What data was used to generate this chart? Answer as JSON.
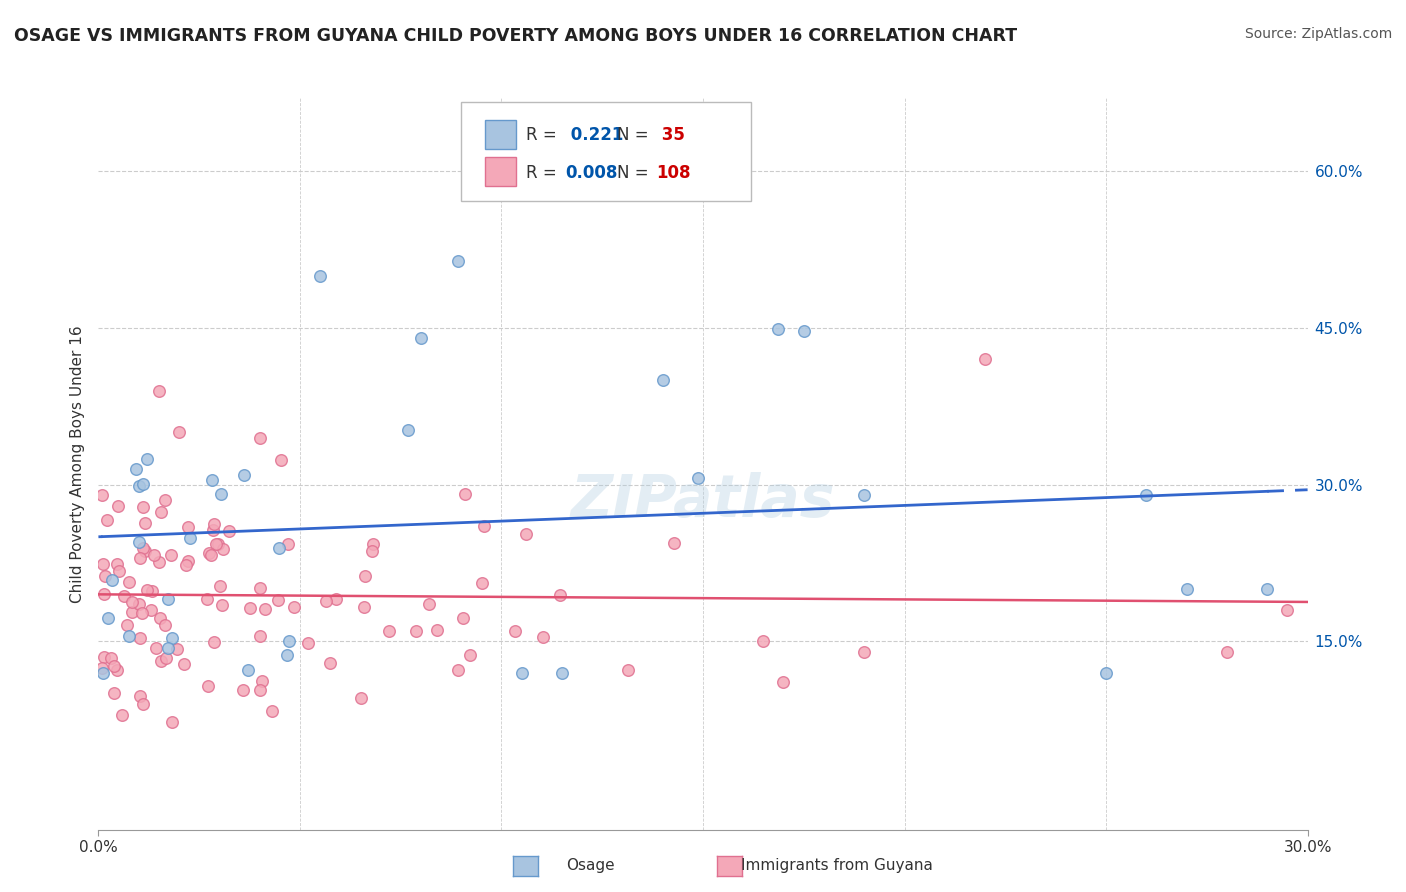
{
  "title": "OSAGE VS IMMIGRANTS FROM GUYANA CHILD POVERTY AMONG BOYS UNDER 16 CORRELATION CHART",
  "source": "Source: ZipAtlas.com",
  "ylabel": "Child Poverty Among Boys Under 16",
  "xlim": [
    0.0,
    0.3
  ],
  "ylim": [
    -0.03,
    0.67
  ],
  "ytick_positions": [
    0.15,
    0.3,
    0.45,
    0.6
  ],
  "ytick_labels": [
    "15.0%",
    "30.0%",
    "45.0%",
    "60.0%"
  ],
  "background_color": "#ffffff",
  "grid_color": "#cccccc",
  "watermark": "ZIPatlas",
  "osage_color": "#a8c4e0",
  "osage_edge_color": "#6699cc",
  "guyana_color": "#f4a8b8",
  "guyana_edge_color": "#e07090",
  "osage_R": 0.221,
  "osage_N": 35,
  "guyana_R": 0.008,
  "guyana_N": 108,
  "legend_R_color": "#0055aa",
  "legend_N_color": "#cc0000",
  "osage_trend_color": "#3366cc",
  "guyana_trend_color": "#e05070"
}
